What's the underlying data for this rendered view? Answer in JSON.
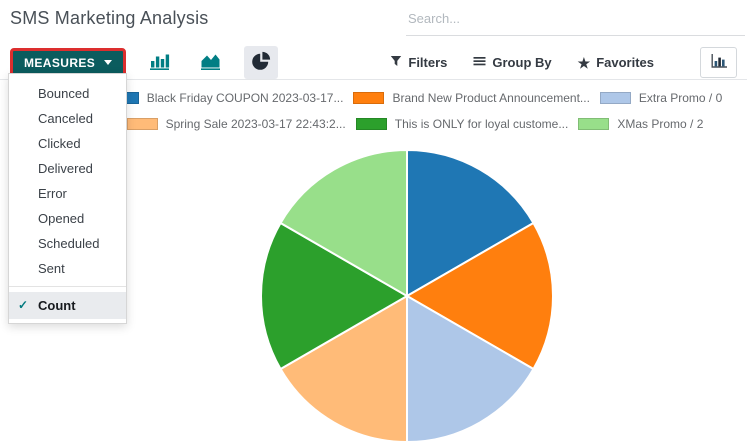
{
  "page_title": "SMS Marketing Analysis",
  "search": {
    "placeholder": "Search..."
  },
  "toolbar": {
    "measures_label": "MEASURES",
    "chart_type_buttons": [
      {
        "icon": "bar-chart-icon",
        "active": false
      },
      {
        "icon": "area-chart-icon",
        "active": false
      },
      {
        "icon": "pie-chart-icon",
        "active": true
      }
    ],
    "filters_label": "Filters",
    "group_by_label": "Group By",
    "favorites_label": "Favorites"
  },
  "measures_menu": {
    "items": [
      "Bounced",
      "Canceled",
      "Clicked",
      "Delivered",
      "Error",
      "Opened",
      "Scheduled",
      "Sent"
    ],
    "selected_item": {
      "label": "Count",
      "checked": true
    }
  },
  "chart_data": {
    "type": "pie",
    "title": "SMS Marketing Analysis",
    "measure": "Count",
    "labels": [
      "Black Friday COUPON 2023-03-17...",
      "Brand New Product Announcement...",
      "Extra Promo / 0",
      "Spring Sale 2023-03-17 22:43:2...",
      "This is ONLY for loyal custome...",
      "XMas Promo / 2"
    ],
    "values": [
      1,
      1,
      1,
      1,
      1,
      1
    ],
    "colors": [
      "#1f77b4",
      "#ff7f0e",
      "#aec7e8",
      "#ffbb78",
      "#2ca02c",
      "#98df8a"
    ],
    "legend_position": "top",
    "start_angle_deg": 0,
    "direction": "clockwise"
  },
  "colors": {
    "primary_button_bg": "#0b5c5e",
    "highlight_border": "#dc2e2e",
    "checkmark": "#01797e",
    "icon_teal": "#017e84"
  }
}
